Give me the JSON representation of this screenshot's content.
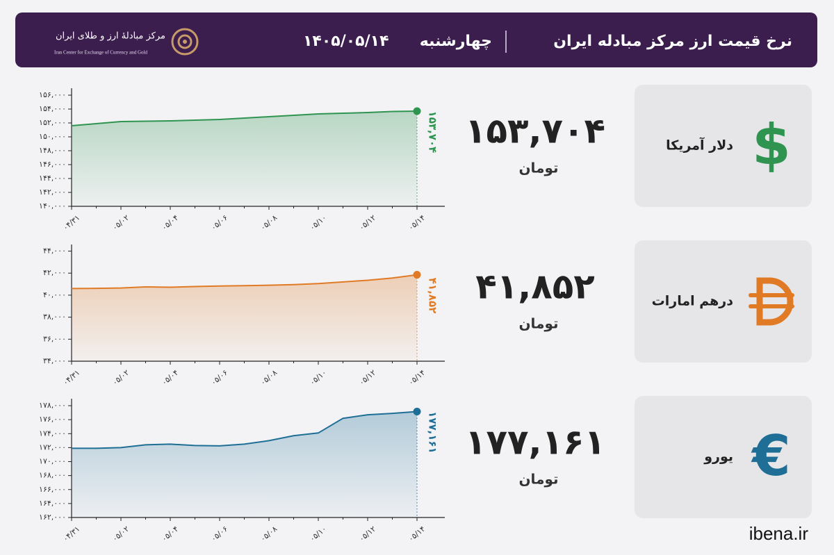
{
  "header": {
    "title": "نرخ قیمت ارز مرکز مبادله ایران",
    "day": "چهارشنبه",
    "date": "۱۴۰۵/۰۵/۱۴",
    "logo_text": "مرکز مبادلهٔ ارز و طلای ایران",
    "logo_subtext": "Iran Center for Exchange of Currency and Gold"
  },
  "cards": [
    {
      "name": "دلار آمریکا",
      "price": "۱۵۳,۷۰۴",
      "unit": "تومان",
      "icon": "$"
    },
    {
      "name": "درهم امارات",
      "price": "۴۱,۸۵۲",
      "unit": "تومان"
    },
    {
      "name": "یورو",
      "price": "۱۷۷,۱۶۱",
      "unit": "تومان",
      "icon": "€"
    }
  ],
  "source": "ibena.ir",
  "chart_data": [
    {
      "type": "line",
      "color": "#2e9450",
      "categories": [
        "۰۴/۳۱",
        null,
        "۰۵/۰۲",
        null,
        "۰۵/۰۴",
        null,
        "۰۵/۰۶",
        null,
        "۰۵/۰۸",
        null,
        "۰۵/۱۰",
        null,
        "۰۵/۱۲",
        null,
        "۰۵/۱۴"
      ],
      "values": [
        151600,
        151900,
        152200,
        152250,
        152300,
        152400,
        152500,
        152700,
        152900,
        153100,
        153300,
        153400,
        153500,
        153650,
        153704
      ],
      "value_labels": [
        null,
        null,
        null,
        null,
        null,
        null,
        null,
        null,
        null,
        null,
        null,
        null,
        null,
        null,
        "۱۵۳,۷۰۴"
      ],
      "ylim": [
        140000,
        157000
      ],
      "yticks": [
        {
          "value": 140000,
          "label": "۱۴۰,۰۰۰"
        },
        {
          "value": 142000,
          "label": "۱۴۲,۰۰۰"
        },
        {
          "value": 144000,
          "label": "۱۴۴,۰۰۰"
        },
        {
          "value": 146000,
          "label": "۱۴۶,۰۰۰"
        },
        {
          "value": 148000,
          "label": "۱۴۸,۰۰۰"
        },
        {
          "value": 150000,
          "label": "۱۵۰,۰۰۰"
        },
        {
          "value": 152000,
          "label": "۱۵۲,۰۰۰"
        },
        {
          "value": 154000,
          "label": "۱۵۴,۰۰۰"
        },
        {
          "value": 156000,
          "label": "۱۵۶,۰۰۰"
        }
      ]
    },
    {
      "type": "line",
      "color": "#e07a25",
      "categories": [
        "۰۴/۳۱",
        null,
        "۰۵/۰۲",
        null,
        "۰۵/۰۴",
        null,
        "۰۵/۰۶",
        null,
        "۰۵/۰۸",
        null,
        "۰۵/۱۰",
        null,
        "۰۵/۱۲",
        null,
        "۰۵/۱۴"
      ],
      "values": [
        40600,
        40620,
        40650,
        40750,
        40720,
        40780,
        40830,
        40860,
        40900,
        40950,
        41050,
        41200,
        41350,
        41550,
        41852
      ],
      "value_labels": [
        null,
        null,
        null,
        null,
        null,
        null,
        null,
        null,
        null,
        null,
        null,
        null,
        null,
        null,
        "۴۱,۸۵۲"
      ],
      "ylim": [
        34000,
        44600
      ],
      "yticks": [
        {
          "value": 34000,
          "label": "۳۴,۰۰۰"
        },
        {
          "value": 36000,
          "label": "۳۶,۰۰۰"
        },
        {
          "value": 38000,
          "label": "۳۸,۰۰۰"
        },
        {
          "value": 40000,
          "label": "۴۰,۰۰۰"
        },
        {
          "value": 42000,
          "label": "۴۲,۰۰۰"
        },
        {
          "value": 44000,
          "label": "۴۴,۰۰۰"
        }
      ]
    },
    {
      "type": "line",
      "color": "#1e6e96",
      "categories": [
        "۰۴/۳۱",
        null,
        "۰۵/۰۲",
        null,
        "۰۵/۰۴",
        null,
        "۰۵/۰۶",
        null,
        "۰۵/۰۸",
        null,
        "۰۵/۱۰",
        null,
        "۰۵/۱۲",
        null,
        "۰۵/۱۴"
      ],
      "values": [
        171900,
        171900,
        172000,
        172400,
        172500,
        172300,
        172250,
        172500,
        173000,
        173700,
        174100,
        176200,
        176700,
        176900,
        177161
      ],
      "value_labels": [
        null,
        null,
        null,
        null,
        null,
        null,
        null,
        null,
        null,
        null,
        null,
        null,
        null,
        null,
        "۱۷۷,۱۶۱"
      ],
      "ylim": [
        162000,
        179000
      ],
      "yticks": [
        {
          "value": 162000,
          "label": "۱۶۲,۰۰۰"
        },
        {
          "value": 164000,
          "label": "۱۶۴,۰۰۰"
        },
        {
          "value": 166000,
          "label": "۱۶۶,۰۰۰"
        },
        {
          "value": 168000,
          "label": "۱۶۸,۰۰۰"
        },
        {
          "value": 170000,
          "label": "۱۷۰,۰۰۰"
        },
        {
          "value": 172000,
          "label": "۱۷۲,۰۰۰"
        },
        {
          "value": 174000,
          "label": "۱۷۴,۰۰۰"
        },
        {
          "value": 176000,
          "label": "۱۷۶,۰۰۰"
        },
        {
          "value": 178000,
          "label": "۱۷۸,۰۰۰"
        }
      ]
    }
  ]
}
